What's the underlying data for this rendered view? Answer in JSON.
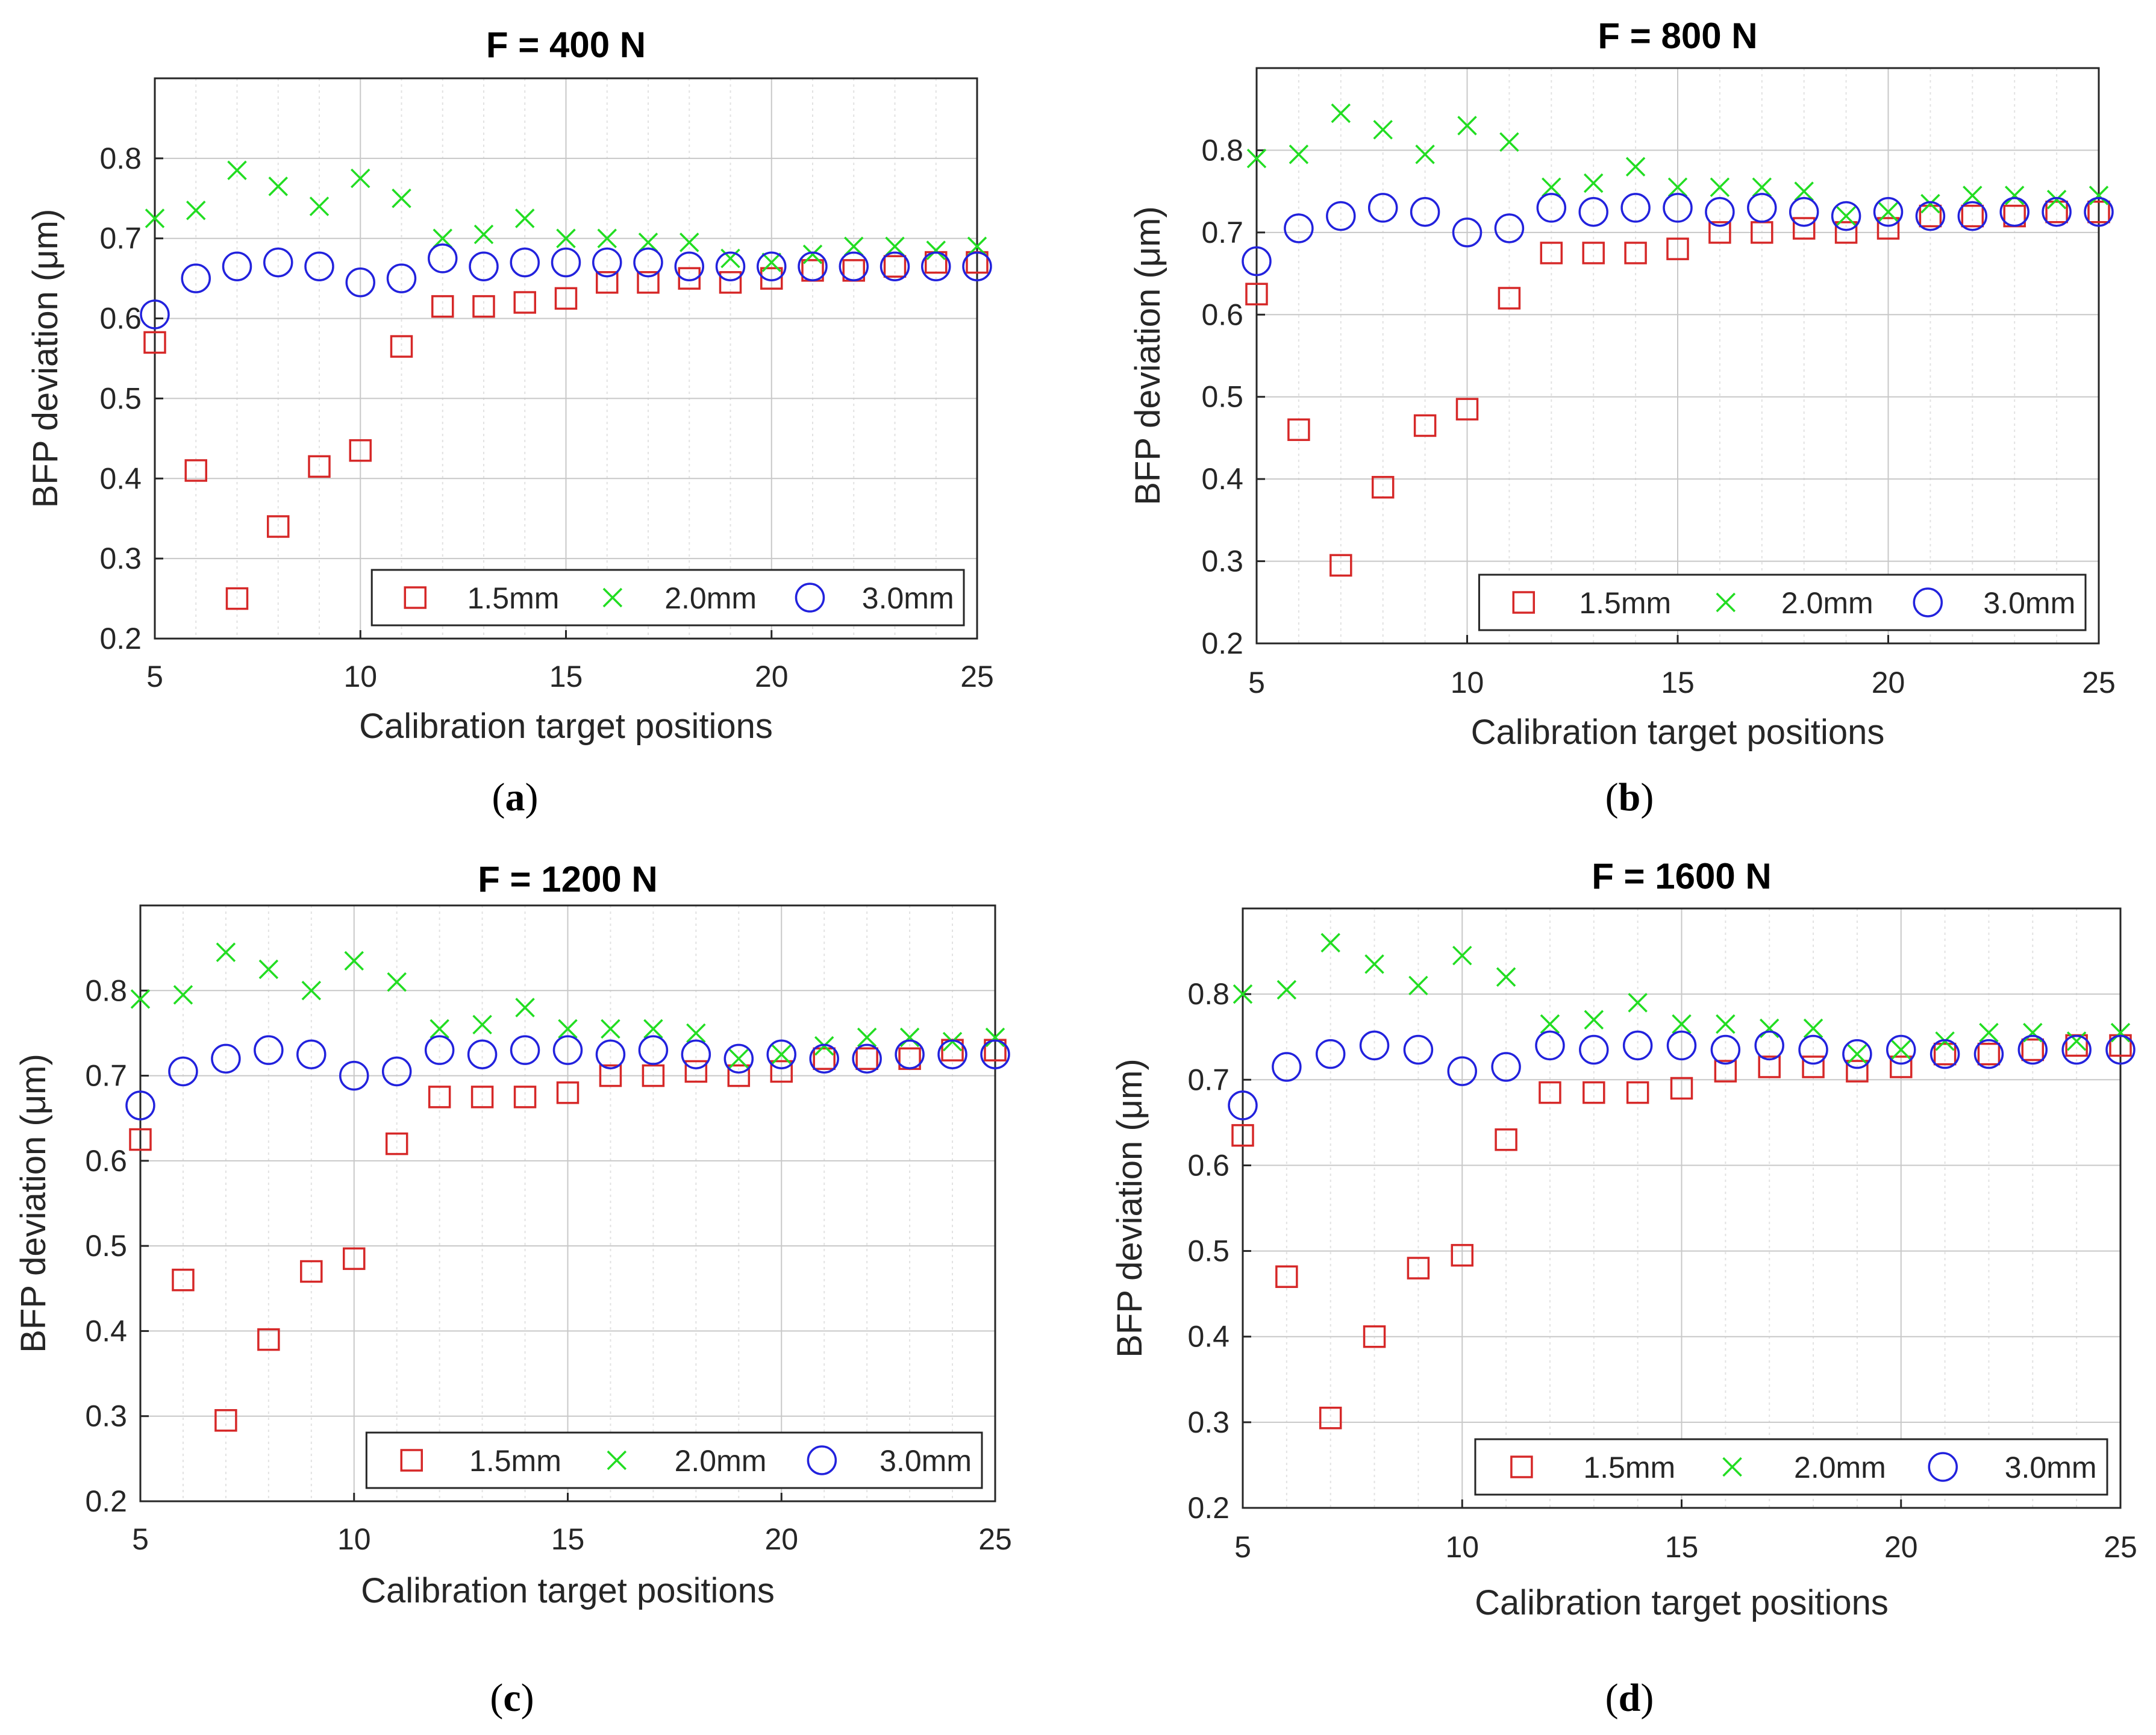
{
  "figure": {
    "colors": {
      "1.5mm": "#d62828",
      "2.0mm": "#22dd22",
      "3.0mm": "#2222dd",
      "axis": "#262626",
      "grid": "#c8c8c8",
      "minor_grid": "#e2e2e2"
    }
  },
  "chart_data": [
    {
      "type": "scatter",
      "panel": "a",
      "caption": {
        "open": "(",
        "letter": "a",
        "close": ")"
      },
      "title": "F = 400 N",
      "xlabel": "Calibration target positions",
      "ylabel": "BFP deviation (μm)",
      "xlim": [
        5,
        25
      ],
      "ylim": [
        0.2,
        0.9
      ],
      "xticks": [
        5,
        10,
        15,
        20,
        25
      ],
      "yticks": [
        0.2,
        0.3,
        0.4,
        0.5,
        0.6,
        0.7,
        0.8
      ],
      "ytick_labels": [
        "0.2",
        "0.3",
        "0.4",
        "0.5",
        "0.6",
        "0.7",
        "0.8"
      ],
      "grid": true,
      "legend": "bottom-right, horizontal",
      "x": [
        5,
        6,
        7,
        8,
        9,
        10,
        11,
        12,
        13,
        14,
        15,
        16,
        17,
        18,
        19,
        20,
        21,
        22,
        23,
        24,
        25
      ],
      "series": [
        {
          "name": "1.5mm",
          "marker": "square",
          "values": [
            0.57,
            0.41,
            0.25,
            0.34,
            0.415,
            0.435,
            0.565,
            0.615,
            0.615,
            0.62,
            0.625,
            0.645,
            0.645,
            0.65,
            0.645,
            0.65,
            0.66,
            0.66,
            0.665,
            0.67,
            0.67
          ]
        },
        {
          "name": "2.0mm",
          "marker": "x",
          "values": [
            0.725,
            0.735,
            0.785,
            0.765,
            0.74,
            0.775,
            0.75,
            0.7,
            0.705,
            0.725,
            0.7,
            0.7,
            0.695,
            0.695,
            0.675,
            0.67,
            0.68,
            0.69,
            0.69,
            0.685,
            0.69
          ]
        },
        {
          "name": "3.0mm",
          "marker": "circle",
          "values": [
            0.605,
            0.65,
            0.665,
            0.67,
            0.665,
            0.645,
            0.65,
            0.675,
            0.665,
            0.67,
            0.67,
            0.67,
            0.67,
            0.665,
            0.665,
            0.665,
            0.665,
            0.665,
            0.665,
            0.665,
            0.665
          ]
        }
      ]
    },
    {
      "type": "scatter",
      "panel": "b",
      "caption": {
        "open": "(",
        "letter": "b",
        "close": ")"
      },
      "title": "F = 800 N",
      "xlabel": "Calibration target positions",
      "ylabel": "BFP deviation (μm)",
      "xlim": [
        5,
        25
      ],
      "ylim": [
        0.2,
        0.9
      ],
      "xticks": [
        5,
        10,
        15,
        20,
        25
      ],
      "yticks": [
        0.2,
        0.3,
        0.4,
        0.5,
        0.6,
        0.7,
        0.8
      ],
      "ytick_labels": [
        "0.2",
        "0.3",
        "0.4",
        "0.5",
        "0.6",
        "0.7",
        "0.8"
      ],
      "grid": true,
      "legend": "bottom-right, horizontal",
      "x": [
        5,
        6,
        7,
        8,
        9,
        10,
        11,
        12,
        13,
        14,
        15,
        16,
        17,
        18,
        19,
        20,
        21,
        22,
        23,
        24,
        25
      ],
      "series": [
        {
          "name": "1.5mm",
          "marker": "square",
          "values": [
            0.625,
            0.46,
            0.295,
            0.39,
            0.465,
            0.485,
            0.62,
            0.675,
            0.675,
            0.675,
            0.68,
            0.7,
            0.7,
            0.705,
            0.7,
            0.705,
            0.72,
            0.72,
            0.72,
            0.725,
            0.725
          ]
        },
        {
          "name": "2.0mm",
          "marker": "x",
          "values": [
            0.79,
            0.795,
            0.845,
            0.825,
            0.795,
            0.83,
            0.81,
            0.755,
            0.76,
            0.78,
            0.755,
            0.755,
            0.755,
            0.75,
            0.72,
            0.725,
            0.735,
            0.745,
            0.745,
            0.74,
            0.745
          ]
        },
        {
          "name": "3.0mm",
          "marker": "circle",
          "values": [
            0.665,
            0.705,
            0.72,
            0.73,
            0.725,
            0.7,
            0.705,
            0.73,
            0.725,
            0.73,
            0.73,
            0.725,
            0.73,
            0.725,
            0.72,
            0.725,
            0.72,
            0.72,
            0.725,
            0.725,
            0.725
          ]
        }
      ]
    },
    {
      "type": "scatter",
      "panel": "c",
      "caption": {
        "open": "(",
        "letter": "c",
        "close": ")"
      },
      "title": "F = 1200 N",
      "xlabel": "Calibration target positions",
      "ylabel": "BFP deviation (μm)",
      "xlim": [
        5,
        25
      ],
      "ylim": [
        0.2,
        0.9
      ],
      "xticks": [
        5,
        10,
        15,
        20,
        25
      ],
      "yticks": [
        0.2,
        0.3,
        0.4,
        0.5,
        0.6,
        0.7,
        0.8
      ],
      "ytick_labels": [
        "0.2",
        "0.3",
        "0.4",
        "0.5",
        "0.6",
        "0.7",
        "0.8"
      ],
      "grid": true,
      "legend": "bottom-right, horizontal",
      "x": [
        5,
        6,
        7,
        8,
        9,
        10,
        11,
        12,
        13,
        14,
        15,
        16,
        17,
        18,
        19,
        20,
        21,
        22,
        23,
        24,
        25
      ],
      "series": [
        {
          "name": "1.5mm",
          "marker": "square",
          "values": [
            0.625,
            0.46,
            0.295,
            0.39,
            0.47,
            0.485,
            0.62,
            0.675,
            0.675,
            0.675,
            0.68,
            0.7,
            0.7,
            0.705,
            0.7,
            0.705,
            0.72,
            0.72,
            0.72,
            0.73,
            0.73
          ]
        },
        {
          "name": "2.0mm",
          "marker": "x",
          "values": [
            0.79,
            0.795,
            0.845,
            0.825,
            0.8,
            0.835,
            0.81,
            0.755,
            0.76,
            0.78,
            0.755,
            0.755,
            0.755,
            0.75,
            0.72,
            0.725,
            0.735,
            0.745,
            0.745,
            0.74,
            0.745
          ]
        },
        {
          "name": "3.0mm",
          "marker": "circle",
          "values": [
            0.665,
            0.705,
            0.72,
            0.73,
            0.725,
            0.7,
            0.705,
            0.73,
            0.725,
            0.73,
            0.73,
            0.725,
            0.73,
            0.725,
            0.72,
            0.725,
            0.72,
            0.72,
            0.725,
            0.725,
            0.725
          ]
        }
      ]
    },
    {
      "type": "scatter",
      "panel": "d",
      "caption": {
        "open": "(",
        "letter": "d",
        "close": ")"
      },
      "title": "F = 1600 N",
      "xlabel": "Calibration target positions",
      "ylabel": "BFP deviation (μm)",
      "xlim": [
        5,
        25
      ],
      "ylim": [
        0.2,
        0.9
      ],
      "xticks": [
        5,
        10,
        15,
        20,
        25
      ],
      "yticks": [
        0.2,
        0.3,
        0.4,
        0.5,
        0.6,
        0.7,
        0.8
      ],
      "ytick_labels": [
        "0.2",
        "0.3",
        "0.4",
        "0.5",
        "0.6",
        "0.7",
        "0.8"
      ],
      "grid": true,
      "legend": "bottom-right, horizontal",
      "x": [
        5,
        6,
        7,
        8,
        9,
        10,
        11,
        12,
        13,
        14,
        15,
        16,
        17,
        18,
        19,
        20,
        21,
        22,
        23,
        24,
        25
      ],
      "series": [
        {
          "name": "1.5mm",
          "marker": "square",
          "values": [
            0.635,
            0.47,
            0.305,
            0.4,
            0.48,
            0.495,
            0.63,
            0.685,
            0.685,
            0.685,
            0.69,
            0.71,
            0.715,
            0.715,
            0.71,
            0.715,
            0.73,
            0.73,
            0.735,
            0.74,
            0.74
          ]
        },
        {
          "name": "2.0mm",
          "marker": "x",
          "values": [
            0.8,
            0.805,
            0.86,
            0.835,
            0.81,
            0.845,
            0.82,
            0.765,
            0.77,
            0.79,
            0.765,
            0.765,
            0.76,
            0.76,
            0.73,
            0.735,
            0.745,
            0.755,
            0.755,
            0.745,
            0.755
          ]
        },
        {
          "name": "3.0mm",
          "marker": "circle",
          "values": [
            0.67,
            0.715,
            0.73,
            0.74,
            0.735,
            0.71,
            0.715,
            0.74,
            0.735,
            0.74,
            0.74,
            0.735,
            0.74,
            0.735,
            0.73,
            0.735,
            0.73,
            0.73,
            0.735,
            0.735,
            0.735
          ]
        }
      ]
    }
  ]
}
